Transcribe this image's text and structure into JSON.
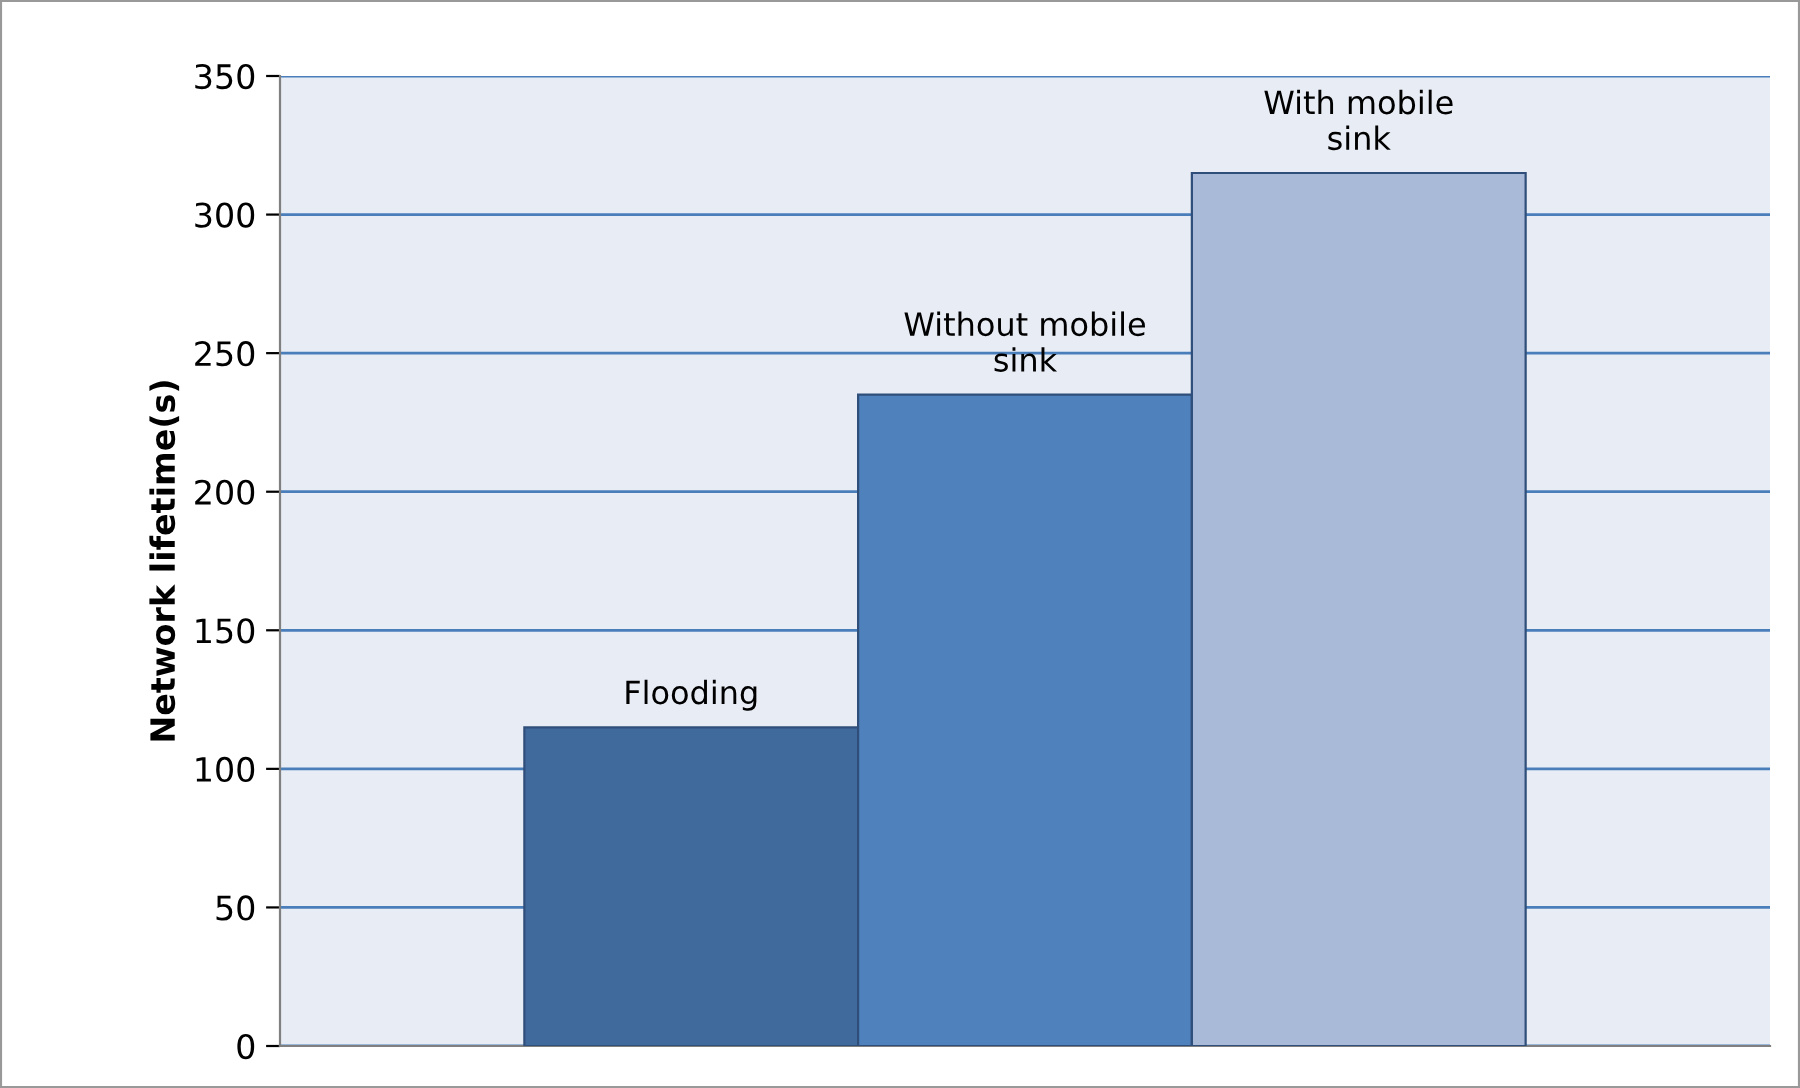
{
  "chart_data": {
    "type": "bar",
    "ylabel": "Network lifetime(s)",
    "categories": [
      null
    ],
    "series": [
      {
        "name": "Flooding",
        "color": "#40699c",
        "values": [
          115
        ]
      },
      {
        "name": "Without mobile\nsink",
        "color": "#4f81bd",
        "values": [
          235
        ]
      },
      {
        "name": "With mobile\nsink",
        "color": "#a9b9d8",
        "values": [
          315
        ]
      }
    ],
    "ylim": [
      0,
      350
    ],
    "yticks": [
      0,
      50,
      100,
      150,
      200,
      250,
      300,
      350
    ],
    "grid": "y",
    "legend": false
  }
}
